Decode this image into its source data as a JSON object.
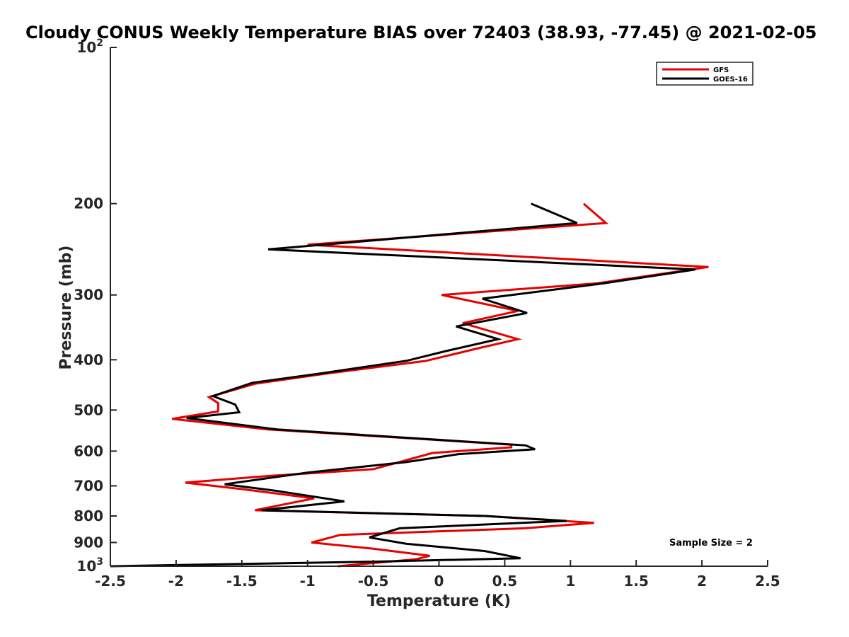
{
  "chart_data": {
    "type": "line",
    "title": "Cloudy CONUS Weekly Temperature BIAS over 72403 (38.93, -77.45) @ 2021-02-05",
    "xlabel": "Temperature (K)",
    "ylabel": "Pressure (mb)",
    "xlim": [
      -2.5,
      2.5
    ],
    "ylim": [
      100,
      1000
    ],
    "y_scale": "log",
    "y_reversed": true,
    "grid": false,
    "legend_position": "top-right",
    "x_ticks": [
      "-2.5",
      "-2",
      "-1.5",
      "-1",
      "-0.5",
      "0",
      "0.5",
      "1",
      "1.5",
      "2",
      "2.5"
    ],
    "y_ticks": [
      {
        "value": 100,
        "base": "10",
        "exp": "2"
      },
      {
        "value": 200,
        "label": "200"
      },
      {
        "value": 300,
        "label": "300"
      },
      {
        "value": 400,
        "label": "400"
      },
      {
        "value": 500,
        "label": "500"
      },
      {
        "value": 600,
        "label": "600"
      },
      {
        "value": 700,
        "label": "700"
      },
      {
        "value": 800,
        "label": "800"
      },
      {
        "value": 900,
        "label": "900"
      },
      {
        "value": 1000,
        "base": "10",
        "exp": "3"
      }
    ],
    "series": [
      {
        "name": "GFS",
        "color": "#e60000",
        "points": [
          [
            1.1,
            200
          ],
          [
            1.27,
            218
          ],
          [
            -1.0,
            240
          ],
          [
            2.05,
            265
          ],
          [
            1.2,
            285
          ],
          [
            0.02,
            300
          ],
          [
            0.6,
            322
          ],
          [
            0.18,
            340
          ],
          [
            0.6,
            365
          ],
          [
            0.3,
            380
          ],
          [
            -0.1,
            402
          ],
          [
            -0.85,
            425
          ],
          [
            -1.4,
            445
          ],
          [
            -1.75,
            472
          ],
          [
            -1.68,
            485
          ],
          [
            -1.68,
            503
          ],
          [
            -2.03,
            520
          ],
          [
            -1.3,
            545
          ],
          [
            0.55,
            583
          ],
          [
            0.55,
            590
          ],
          [
            -0.05,
            605
          ],
          [
            -0.5,
            650
          ],
          [
            -1.3,
            670
          ],
          [
            -1.93,
            690
          ],
          [
            -1.5,
            710
          ],
          [
            -0.95,
            740
          ],
          [
            -1.4,
            780
          ],
          [
            0.35,
            800
          ],
          [
            1.18,
            825
          ],
          [
            0.65,
            845
          ],
          [
            -0.75,
            870
          ],
          [
            -0.97,
            900
          ],
          [
            -0.5,
            925
          ],
          [
            -0.07,
            955
          ],
          [
            -0.18,
            970
          ],
          [
            -0.77,
            1000
          ]
        ]
      },
      {
        "name": "GOES-16",
        "color": "#000000",
        "points": [
          [
            0.7,
            200
          ],
          [
            1.05,
            218
          ],
          [
            -1.3,
            245
          ],
          [
            1.95,
            268
          ],
          [
            1.25,
            285
          ],
          [
            0.33,
            305
          ],
          [
            0.67,
            325
          ],
          [
            0.13,
            345
          ],
          [
            0.45,
            365
          ],
          [
            0.05,
            385
          ],
          [
            -0.25,
            402
          ],
          [
            -0.9,
            425
          ],
          [
            -1.42,
            443
          ],
          [
            -1.72,
            470
          ],
          [
            -1.55,
            488
          ],
          [
            -1.52,
            505
          ],
          [
            -1.92,
            518
          ],
          [
            -1.23,
            545
          ],
          [
            0.66,
            585
          ],
          [
            0.73,
            595
          ],
          [
            0.15,
            608
          ],
          [
            -0.25,
            630
          ],
          [
            -1.0,
            660
          ],
          [
            -1.63,
            695
          ],
          [
            -1.25,
            715
          ],
          [
            -0.72,
            750
          ],
          [
            -1.35,
            780
          ],
          [
            0.35,
            800
          ],
          [
            0.97,
            818
          ],
          [
            -0.3,
            845
          ],
          [
            -0.53,
            880
          ],
          [
            -0.25,
            905
          ],
          [
            0.35,
            935
          ],
          [
            0.62,
            965
          ],
          [
            -0.5,
            980
          ],
          [
            -2.5,
            1000
          ]
        ]
      }
    ],
    "annotation": "Sample Size = 2"
  }
}
